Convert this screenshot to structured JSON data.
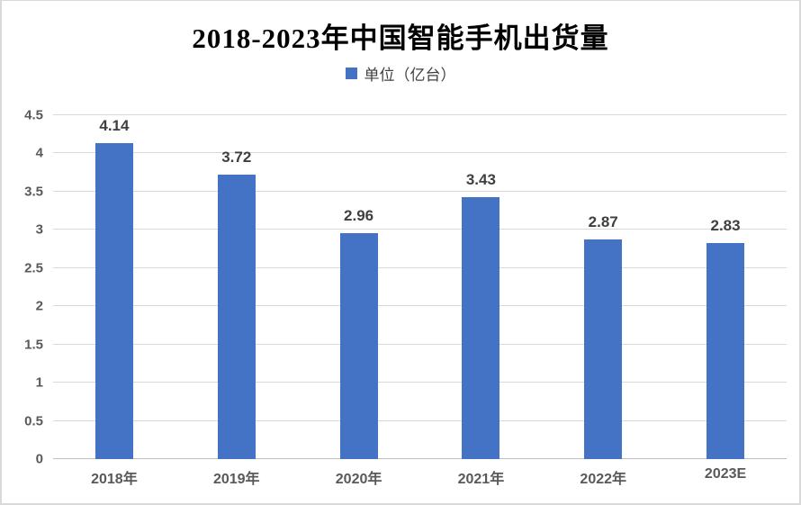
{
  "title": "2018-2023年中国智能手机出货量",
  "legend": {
    "label": "单位（亿台）",
    "marker_color": "#4472C4"
  },
  "chart_data": {
    "type": "bar",
    "title": "2018-2023年中国智能手机出货量",
    "categories": [
      "2018年",
      "2019年",
      "2020年",
      "2021年",
      "2022年",
      "2023E"
    ],
    "values": [
      4.14,
      3.72,
      2.96,
      3.43,
      2.87,
      2.83
    ],
    "series_name": "单位（亿台）",
    "xlabel": "",
    "ylabel": "",
    "ylim": [
      0,
      4.5
    ],
    "yticks": [
      0,
      0.5,
      1,
      1.5,
      2,
      2.5,
      3,
      3.5,
      4,
      4.5
    ],
    "grid": true,
    "legend_position": "top",
    "bar_color": "#4472C4",
    "gridline_color": "#d9d9d9",
    "axis_label_color": "#595959",
    "data_label_color": "#3f3f3f"
  }
}
